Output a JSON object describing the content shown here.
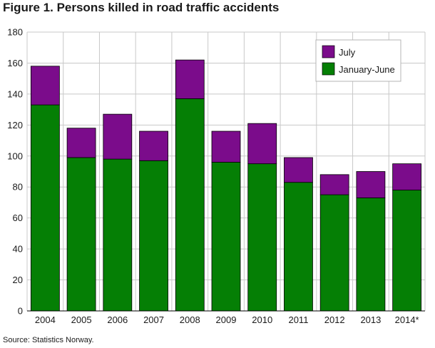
{
  "title": "Figure 1. Persons killed in road traffic accidents",
  "source": "Source: Statistics Norway.",
  "colors": {
    "july": "#7b0c8b",
    "jan_june": "#057f05",
    "grid": "#c8c8c8",
    "stroke": "#000000"
  },
  "chart_data": {
    "type": "bar",
    "stacked": true,
    "title": "Figure 1. Persons killed in road traffic accidents",
    "xlabel": "",
    "ylabel": "",
    "ylim": [
      0,
      180
    ],
    "yticks": [
      0,
      20,
      40,
      60,
      80,
      100,
      120,
      140,
      160,
      180
    ],
    "grid": true,
    "legend_position": "top-right",
    "categories": [
      "2004",
      "2005",
      "2006",
      "2007",
      "2008",
      "2009",
      "2010",
      "2011",
      "2012",
      "2013",
      "2014*"
    ],
    "series": [
      {
        "name": "January-June",
        "color": "#057f05",
        "values": [
          133,
          99,
          98,
          97,
          137,
          96,
          95,
          83,
          75,
          73,
          78
        ]
      },
      {
        "name": "July",
        "color": "#7b0c8b",
        "values": [
          25,
          19,
          29,
          19,
          25,
          20,
          26,
          16,
          13,
          17,
          17
        ]
      }
    ],
    "legend": [
      "July",
      "January-June"
    ]
  }
}
